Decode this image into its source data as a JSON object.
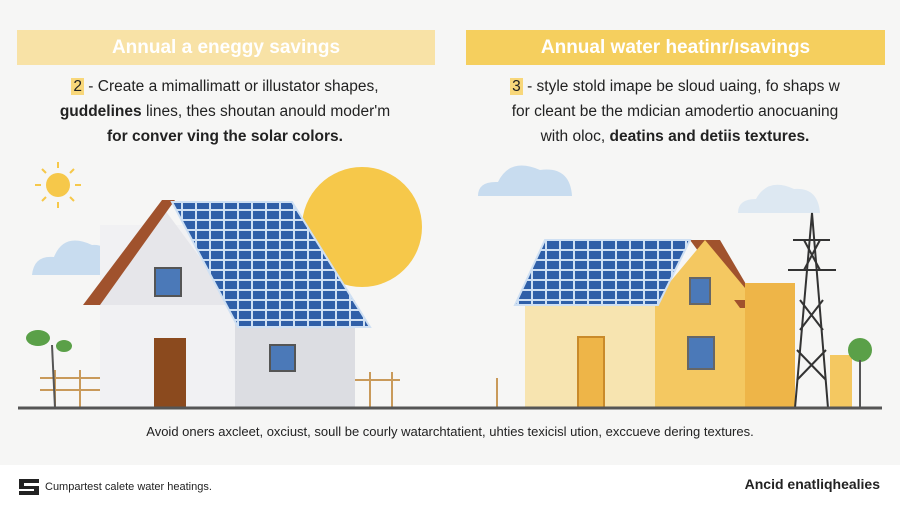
{
  "left_panel": {
    "title": "Annual a eneggy savings",
    "number": "2",
    "line1": " - Create a mimallimatt or illustator shapes,",
    "line2_bold": "guddelines",
    "line2": " lines, thes shoutan anould moder'm",
    "line3": "for conver ving the solar colors."
  },
  "right_panel": {
    "title": "Annual water heatinr/ısavings",
    "number": "3",
    "line1": " - style stold imape be sloud uaing, fo shaps w",
    "line2": "for cleant be the mdician amodertio anocuaning",
    "line3a": "with oloc, ",
    "line3_bold": "deatins and detiis textures."
  },
  "caption": "Avoid oners axcleet, oxciust, soull be courly watarchtatient, uhties texicisl ution, exccueve dering textures.",
  "footer": {
    "left_text": "Cumpartest calete water heatings.",
    "logo_icon": "brand-logo-icon",
    "right_text": "Ancid enatliqhealies"
  },
  "colors": {
    "left_bar": "#f8e2a6",
    "right_bar": "#f5cf5e",
    "panel_blue": "#2f5fa8",
    "sun": "#f6c84a"
  }
}
